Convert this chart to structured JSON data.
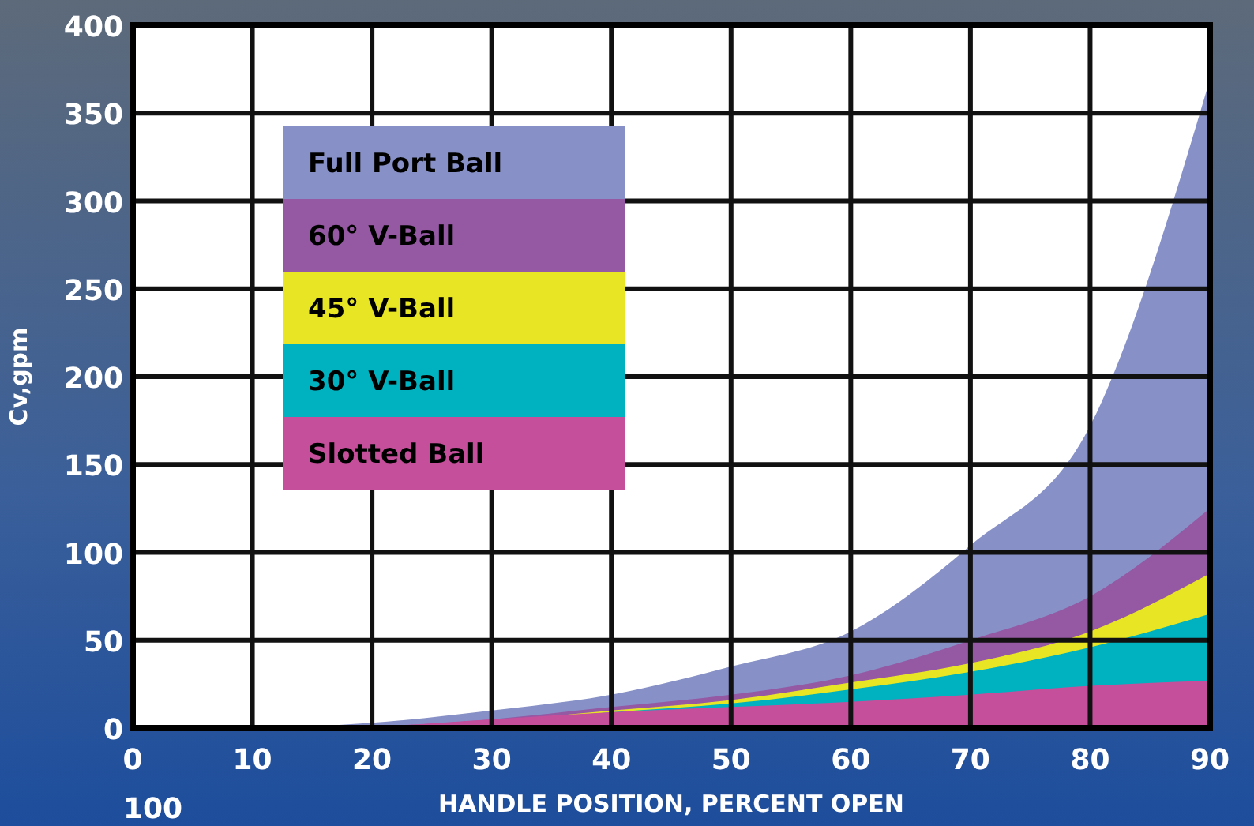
{
  "chart_data": {
    "type": "area",
    "xlabel": "HANDLE POSITION, PERCENT OPEN",
    "ylabel": "Cv,gpm",
    "x": [
      0,
      10,
      20,
      30,
      40,
      50,
      60,
      70,
      80,
      90
    ],
    "series": [
      {
        "name": "Full Port Ball",
        "color": "#8791c8",
        "values": [
          0,
          0,
          3,
          10,
          19,
          35,
          55,
          104,
          172,
          369
        ]
      },
      {
        "name": "60° V-Ball",
        "color": "#9558a3",
        "values": [
          0,
          0,
          1,
          5,
          12,
          19,
          30,
          50,
          75,
          125
        ]
      },
      {
        "name": "45° V-Ball",
        "color": "#e8e624",
        "values": [
          0,
          0,
          1,
          4,
          10,
          16,
          26,
          37,
          55,
          88
        ]
      },
      {
        "name": "30° V-Ball",
        "color": "#00b2c0",
        "values": [
          0,
          0,
          1,
          4,
          9,
          14,
          22,
          32,
          46,
          65
        ]
      },
      {
        "name": "Slotted Ball",
        "color": "#c64f9b",
        "values": [
          0,
          0,
          1,
          5,
          9,
          12,
          15,
          19,
          24,
          27
        ]
      }
    ],
    "xlim": [
      0,
      90
    ],
    "xticks": [
      0,
      10,
      20,
      30,
      40,
      50,
      60,
      70,
      80,
      90
    ],
    "ylim": [
      0,
      400
    ],
    "yticks": [
      0,
      50,
      100,
      150,
      200,
      250,
      300,
      350,
      400
    ],
    "grid": true,
    "legend": "top left",
    "annotations": [
      "100"
    ]
  }
}
